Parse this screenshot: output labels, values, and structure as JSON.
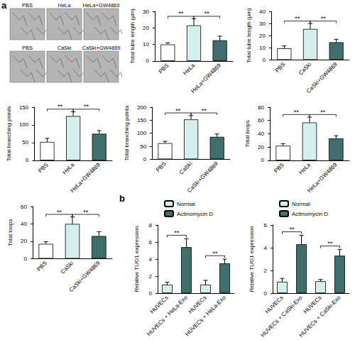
{
  "panel_labels": [
    "a",
    "b"
  ],
  "micrograph_labels": [
    "PBS",
    "HeLa",
    "HeLa+GW4869",
    "PBS",
    "CaSki",
    "CaSki+GW4869"
  ],
  "chart_data": [
    {
      "type": "bar",
      "ylabel": "Total tube length (μm)",
      "categories": [
        "PBS",
        "HeLa",
        "HeLa+GW4869"
      ],
      "values": [
        10,
        21.5,
        12.5
      ],
      "errors": [
        1,
        4,
        2.5
      ],
      "colors": [
        "#ffffff",
        "#d5eeee",
        "#3f6e6c"
      ],
      "ylim": [
        0,
        30
      ],
      "yticks": [
        0,
        10,
        20,
        30
      ],
      "grid": false,
      "annotations": [
        {
          "text": "**",
          "between": [
            0,
            1
          ]
        },
        {
          "text": "**",
          "between": [
            1,
            2
          ]
        }
      ]
    },
    {
      "type": "bar",
      "ylabel": "Total tube length (μm)",
      "categories": [
        "PBS",
        "CaSki",
        "CaSki+GW4869"
      ],
      "values": [
        9.5,
        25.5,
        14.5
      ],
      "errors": [
        2,
        4.5,
        2.5
      ],
      "colors": [
        "#ffffff",
        "#d5eeee",
        "#3f6e6c"
      ],
      "ylim": [
        0,
        40
      ],
      "yticks": [
        0,
        10,
        20,
        30,
        40
      ],
      "grid": false,
      "annotations": [
        {
          "text": "**",
          "between": [
            0,
            1
          ]
        },
        {
          "text": "**",
          "between": [
            1,
            2
          ]
        }
      ]
    },
    {
      "type": "bar",
      "ylabel": "Total branching points",
      "categories": [
        "PBS",
        "HeLa",
        "HeLa+GW4869"
      ],
      "values": [
        52,
        125,
        75
      ],
      "errors": [
        10,
        12,
        9
      ],
      "colors": [
        "#ffffff",
        "#d5eeee",
        "#3f6e6c"
      ],
      "ylim": [
        0,
        150
      ],
      "yticks": [
        0,
        50,
        100,
        150
      ],
      "grid": false,
      "annotations": [
        {
          "text": "**",
          "between": [
            0,
            1
          ]
        },
        {
          "text": "**",
          "between": [
            1,
            2
          ]
        }
      ]
    },
    {
      "type": "bar",
      "ylabel": "Total branching points",
      "categories": [
        "PBS",
        "CaSki",
        "CaSki+GW4869"
      ],
      "values": [
        62,
        153,
        86
      ],
      "errors": [
        7,
        15,
        11
      ],
      "colors": [
        "#ffffff",
        "#d5eeee",
        "#3f6e6c"
      ],
      "ylim": [
        0,
        200
      ],
      "yticks": [
        0,
        50,
        100,
        150,
        200
      ],
      "grid": false,
      "annotations": [
        {
          "text": "**",
          "between": [
            0,
            1
          ]
        },
        {
          "text": "**",
          "between": [
            1,
            2
          ]
        }
      ]
    },
    {
      "type": "bar",
      "ylabel": "Total loops",
      "categories": [
        "PBS",
        "HeLa",
        "HeLa+GW4869"
      ],
      "values": [
        22,
        57,
        33
      ],
      "errors": [
        3,
        8,
        4
      ],
      "colors": [
        "#ffffff",
        "#d5eeee",
        "#3f6e6c"
      ],
      "ylim": [
        0,
        80
      ],
      "yticks": [
        0,
        20,
        40,
        60,
        80
      ],
      "grid": false,
      "annotations": [
        {
          "text": "**",
          "between": [
            0,
            1
          ]
        },
        {
          "text": "**",
          "between": [
            1,
            2
          ]
        }
      ]
    },
    {
      "type": "bar",
      "ylabel": "Total loops",
      "categories": [
        "PBS",
        "CaSki",
        "CaSki+GW4869"
      ],
      "values": [
        17,
        40,
        26
      ],
      "errors": [
        2.5,
        8,
        5
      ],
      "colors": [
        "#ffffff",
        "#d5eeee",
        "#3f6e6c"
      ],
      "ylim": [
        0,
        60
      ],
      "yticks": [
        0,
        20,
        40,
        60
      ],
      "grid": false,
      "annotations": [
        {
          "text": "**",
          "between": [
            0,
            1
          ]
        },
        {
          "text": "**",
          "between": [
            1,
            2
          ]
        }
      ]
    },
    {
      "type": "bar",
      "ylabel": "Relative TUG1 expression",
      "categories": [
        "HUVECs",
        "HUVECs + HeLa-Exo",
        "HUVECs",
        "HUVECs + HeLa-Exo"
      ],
      "series": [
        {
          "name": "Normal",
          "color": "#d5eeee",
          "values": [
            1.0,
            null,
            1.0,
            null
          ],
          "errors": [
            0.3,
            null,
            0.5,
            null
          ]
        },
        {
          "name": "Actinomycin D",
          "color": "#3f6e6c",
          "values": [
            null,
            5.4,
            null,
            3.5
          ],
          "errors": [
            null,
            1.0,
            null,
            0.5
          ]
        }
      ],
      "ylim": [
        0,
        8
      ],
      "yticks": [
        0,
        2,
        4,
        6,
        8
      ],
      "grid": false,
      "legend": "top",
      "annotations": [
        {
          "text": "**",
          "between": [
            0,
            1
          ]
        },
        {
          "text": "**",
          "between": [
            2,
            3
          ]
        }
      ]
    },
    {
      "type": "bar",
      "ylabel": "Relative TUG1 expression",
      "categories": [
        "HUVECs",
        "HUVECs + CaSki-Exo",
        "HUVECs",
        "HUVECs + CaSki-Exo"
      ],
      "series": [
        {
          "name": "Normal",
          "color": "#d5eeee",
          "values": [
            1.0,
            null,
            1.05,
            null
          ],
          "errors": [
            0.3,
            null,
            0.15,
            null
          ]
        },
        {
          "name": "Actinomycin D",
          "color": "#3f6e6c",
          "values": [
            null,
            4.3,
            null,
            3.3
          ],
          "errors": [
            null,
            0.8,
            null,
            0.55
          ]
        }
      ],
      "ylim": [
        0,
        6
      ],
      "yticks": [
        0,
        2,
        4,
        6
      ],
      "grid": false,
      "legend": "top",
      "annotations": [
        {
          "text": "**",
          "between": [
            0,
            1
          ]
        },
        {
          "text": "**",
          "between": [
            2,
            3
          ]
        }
      ]
    }
  ]
}
